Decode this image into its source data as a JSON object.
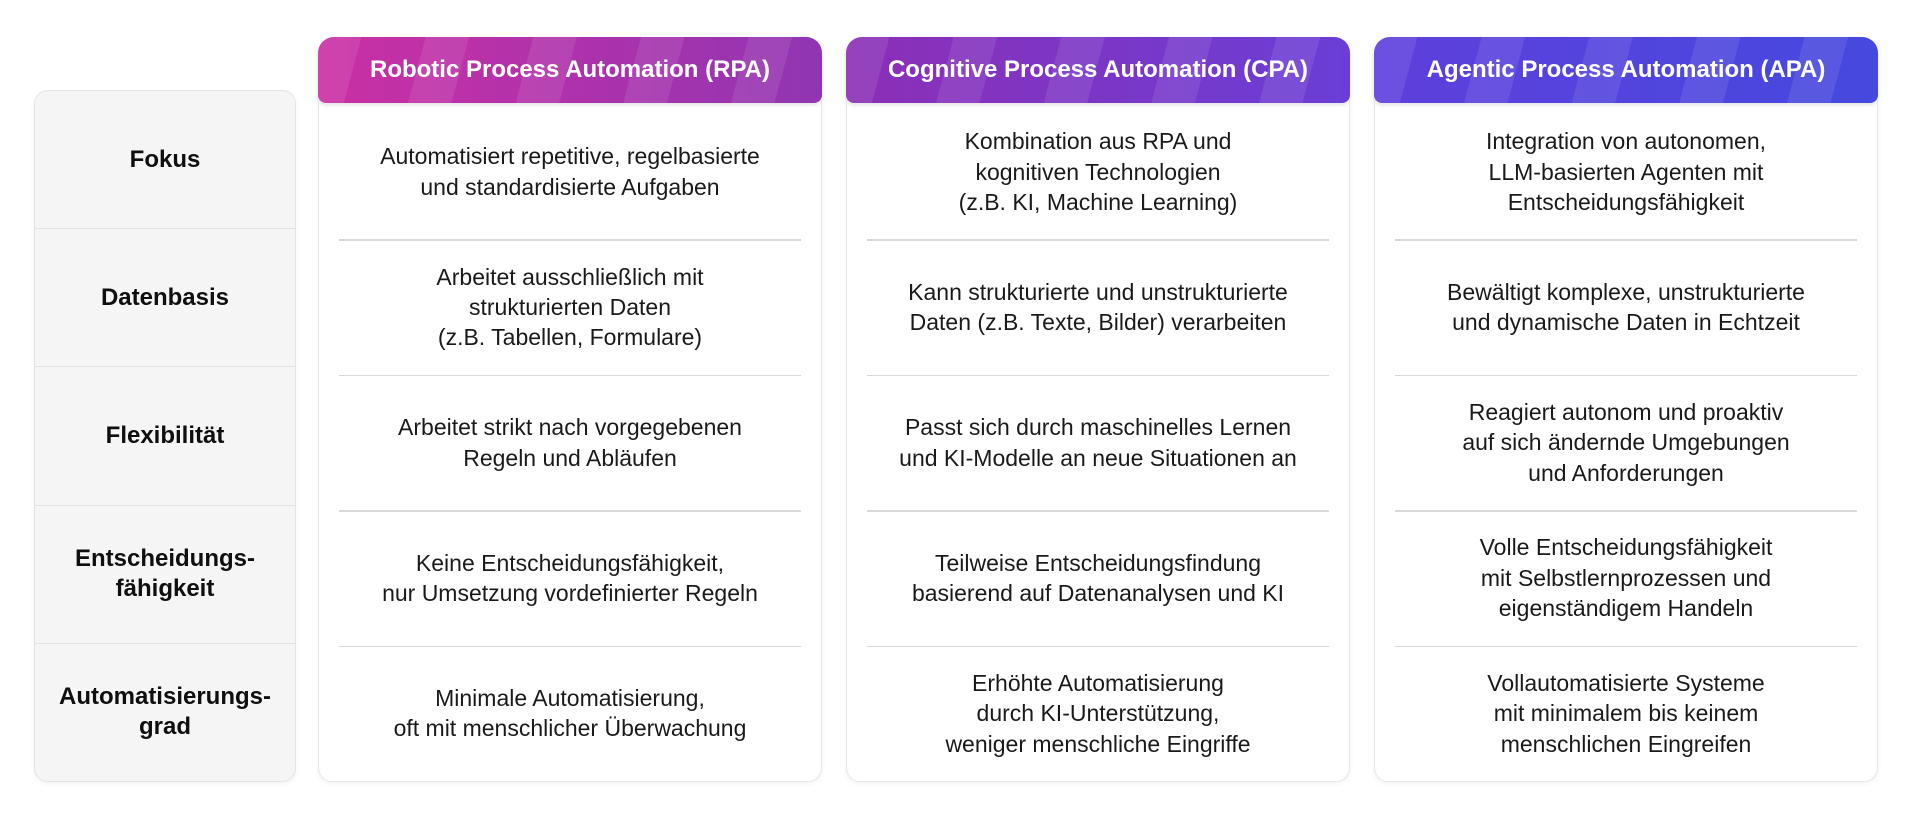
{
  "colors": {
    "page_bg": "#ffffff",
    "label_column_bg": "#f5f5f6",
    "card_border": "#e4e4e6",
    "row_divider": "#d9d9db",
    "body_text": "#1a1a1a",
    "header_text": "#ffffff"
  },
  "table": {
    "columns": [
      {
        "id": "rpa",
        "header": "Robotic Process Automation (RPA)",
        "gradient_from": "#cb2fa4",
        "gradient_to": "#9135b2"
      },
      {
        "id": "cpa",
        "header": "Cognitive Process Automation (CPA)",
        "gradient_from": "#8c2fb6",
        "gradient_to": "#6a3ed6"
      },
      {
        "id": "apa",
        "header": "Agentic Process Automation (APA)",
        "gradient_from": "#5f3fdc",
        "gradient_to": "#4549de"
      }
    ],
    "rows": [
      {
        "label": "Fokus",
        "cells": [
          "Automatisiert repetitive, regelbasierte\nund standardisierte Aufgaben",
          "Kombination aus RPA und\nkognitiven Technologien\n(z.B. KI, Machine Learning)",
          "Integration von autonomen,\nLLM-basierten Agenten mit\nEntscheidungsfähigkeit"
        ]
      },
      {
        "label": "Datenbasis",
        "cells": [
          "Arbeitet ausschließlich mit\nstrukturierten Daten\n(z.B. Tabellen, Formulare)",
          "Kann strukturierte und unstrukturierte\nDaten (z.B. Texte, Bilder) verarbeiten",
          "Bewältigt komplexe, unstrukturierte\nund dynamische Daten in Echtzeit"
        ]
      },
      {
        "label": "Flexibilität",
        "cells": [
          "Arbeitet strikt nach vorgegebenen\nRegeln und Abläufen",
          "Passt sich durch maschinelles Lernen\nund KI-Modelle an neue Situationen an",
          "Reagiert autonom und proaktiv\nauf sich ändernde Umgebungen\nund Anforderungen"
        ]
      },
      {
        "label": "Entscheidungs-fähigkeit",
        "cells": [
          "Keine Entscheidungsfähigkeit,\nnur Umsetzung vordefinierter Regeln",
          "Teilweise Entscheidungsfindung\nbasierend auf Datenanalysen und KI",
          "Volle Entscheidungsfähigkeit\nmit Selbstlernprozessen und\neigenständigem Handeln"
        ]
      },
      {
        "label": "Automatisierungs-grad",
        "cells": [
          "Minimale Automatisierung,\noft mit menschlicher Überwachung",
          "Erhöhte Automatisierung\ndurch KI-Unterstützung,\nweniger menschliche Eingriffe",
          "Vollautomatisierte Systeme\nmit minimalem bis keinem\nmenschlichen Eingreifen"
        ]
      }
    ]
  }
}
